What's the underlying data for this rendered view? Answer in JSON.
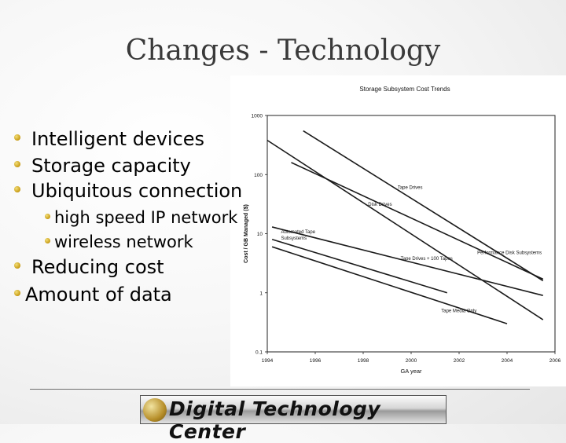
{
  "slide": {
    "title": "Changes  - Technology",
    "bullets": [
      {
        "text": "Intelligent devices"
      },
      {
        "text": "Storage capacity"
      },
      {
        "text": "Ubiquitous connection"
      },
      {
        "text": "high speed IP network"
      },
      {
        "text": "wireless network"
      },
      {
        "text": "Reducing cost"
      },
      {
        "text": "Amount of data"
      }
    ],
    "logo_text": "Digital Technology Center"
  },
  "chart_data": {
    "type": "line",
    "title": "Storage Subsystem Cost Trends",
    "xlabel": "GA year",
    "ylabel": "Cost / GB Managed ($)",
    "y_scale": "log",
    "ylim": [
      0.1,
      1000
    ],
    "xlim": [
      1994,
      2006
    ],
    "y_ticks": [
      "1000",
      "100",
      "10",
      "1",
      "0.1"
    ],
    "x_ticks": [
      "1994",
      "1996",
      "1998",
      "2000",
      "2002",
      "2004",
      "2006"
    ],
    "x_tick_labels": [
      "1994",
      "1996",
      "1998",
      "2000",
      "2002",
      "2004",
      "2006"
    ],
    "series": [
      {
        "name": "Tape Drives",
        "x": [
          1995.5,
          2005.5
        ],
        "y": [
          550,
          1.6
        ]
      },
      {
        "name": "Disk Drives",
        "x": [
          1994,
          2005.5
        ],
        "y": [
          380,
          0.35
        ]
      },
      {
        "name": "Performance Disk Subsystems",
        "x": [
          1995,
          2005.5
        ],
        "y": [
          160,
          1.7
        ]
      },
      {
        "name": "Tape Drives + 100 Tapes",
        "x": [
          1994.2,
          2005.5
        ],
        "y": [
          13,
          0.9
        ]
      },
      {
        "name": "Automated Tape Subsystems",
        "x": [
          1994.2,
          2001.5
        ],
        "y": [
          8,
          1.0
        ]
      },
      {
        "name": "Tape Media Only",
        "x": [
          1994.2,
          2004
        ],
        "y": [
          6,
          0.3
        ]
      }
    ],
    "annotations": [
      {
        "text": "Tape Drives",
        "series": 0
      },
      {
        "text": "Disk Drives",
        "series": 1
      },
      {
        "text": "Performance Disk Subsystems",
        "series": 2
      },
      {
        "text": "Tape Drives + 100 Tapes",
        "series": 3
      },
      {
        "text": "Automated Tape Subsystems",
        "series": 4
      },
      {
        "text": "Tape Media Only",
        "series": 5
      }
    ]
  }
}
